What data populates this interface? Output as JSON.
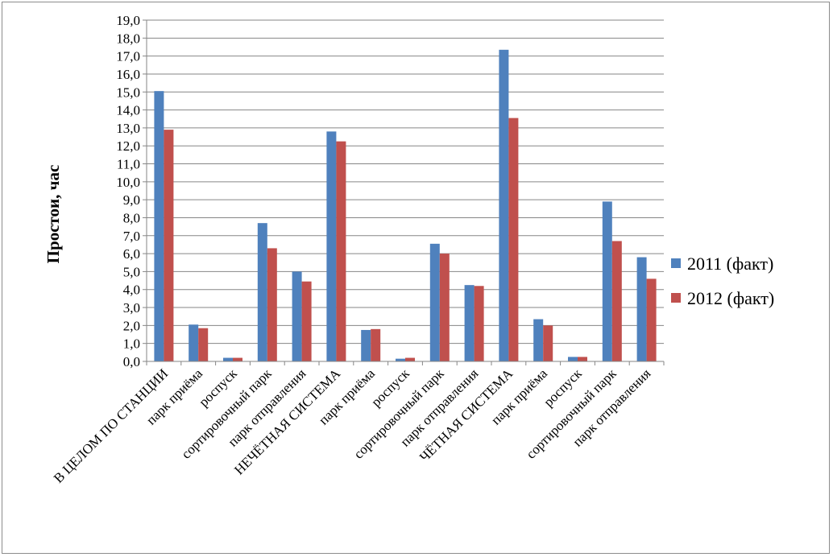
{
  "chart_data": {
    "type": "bar",
    "ylabel": "Простои, час",
    "ylim": [
      0,
      19
    ],
    "ytick_step": 1,
    "grid": true,
    "legend_position": "right",
    "categories": [
      "В ЦЕЛОМ ПО СТАНЦИИ",
      "парк приёма",
      "роспуск",
      "сортировочный парк",
      "парк отправления",
      "НЕЧЁТНАЯ СИСТЕМА",
      "парк приёма",
      "роспуск",
      "сортировочный парк",
      "парк отправления",
      "ЧЁТНАЯ СИСТЕМА",
      "парк приёма",
      "роспуск",
      "сортировочный парк",
      "парк отправления"
    ],
    "series": [
      {
        "name": "2011 (факт)",
        "color": "#4f81bd",
        "values": [
          15.05,
          2.05,
          0.2,
          7.7,
          5.0,
          12.8,
          1.75,
          0.15,
          6.55,
          4.25,
          17.35,
          2.35,
          0.25,
          8.9,
          5.8
        ]
      },
      {
        "name": "2012 (факт)",
        "color": "#c0504d",
        "values": [
          12.9,
          1.85,
          0.2,
          6.3,
          4.45,
          12.25,
          1.8,
          0.2,
          6.0,
          4.2,
          13.55,
          2.0,
          0.25,
          6.7,
          4.6
        ]
      }
    ]
  }
}
